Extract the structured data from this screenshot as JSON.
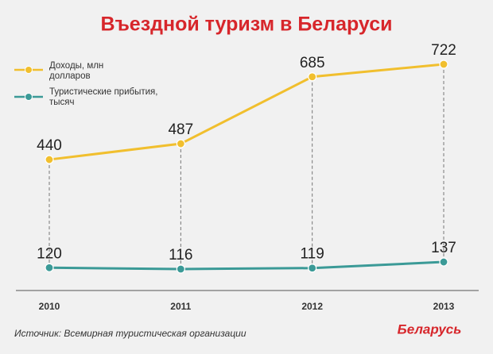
{
  "chart_data": {
    "type": "line",
    "title": "Въездной туризм в Беларуси",
    "categories": [
      "2010",
      "2011",
      "2012",
      "2013"
    ],
    "series": [
      {
        "name": "Доходы, млн долларов",
        "color": "#f1bf2e",
        "values": [
          440,
          487,
          685,
          722
        ]
      },
      {
        "name": "Туристические прибытия, тысяч",
        "color": "#3b9a97",
        "values": [
          120,
          116,
          119,
          137
        ]
      }
    ],
    "source": "Источник: Всемирная туристическая организации",
    "logo": "Беларусь"
  }
}
